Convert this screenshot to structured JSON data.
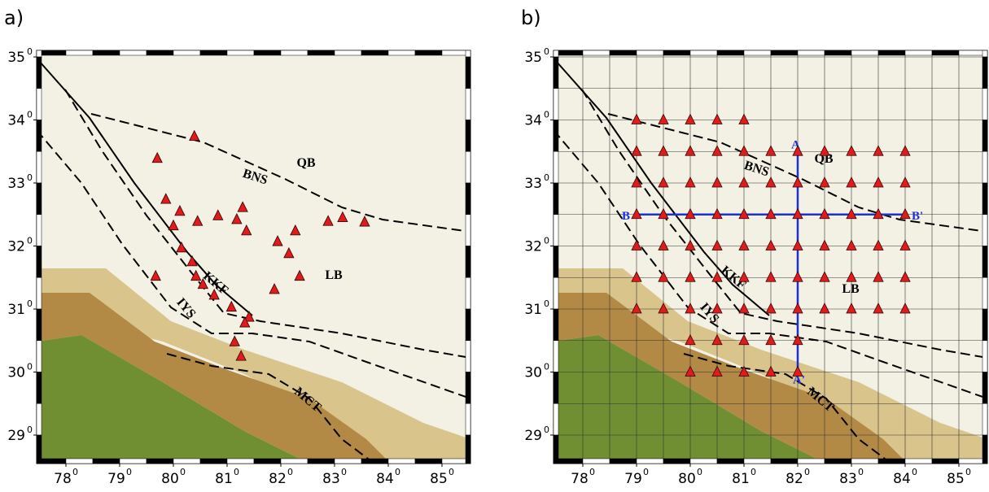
{
  "degree_mark": "0",
  "lon_ticks": [
    78,
    79,
    80,
    81,
    82,
    83,
    84,
    85
  ],
  "lat_ticks": [
    29,
    30,
    31,
    32,
    33,
    34,
    35
  ],
  "panels": [
    {
      "label": "a)",
      "region_labels": [
        "QB",
        "BNS",
        "LB",
        "KKF",
        "IYS",
        "MCT"
      ],
      "stations": [
        [
          80.39,
          33.74
        ],
        [
          79.7,
          33.39
        ],
        [
          79.86,
          32.74
        ],
        [
          80.12,
          32.55
        ],
        [
          80.0,
          32.32
        ],
        [
          80.45,
          32.39
        ],
        [
          80.83,
          32.48
        ],
        [
          81.29,
          32.61
        ],
        [
          81.18,
          32.42
        ],
        [
          81.36,
          32.24
        ],
        [
          82.27,
          32.24
        ],
        [
          81.94,
          32.07
        ],
        [
          82.15,
          31.88
        ],
        [
          82.35,
          31.52
        ],
        [
          81.88,
          31.31
        ],
        [
          80.15,
          31.97
        ],
        [
          80.35,
          31.75
        ],
        [
          80.42,
          31.52
        ],
        [
          80.55,
          31.39
        ],
        [
          80.76,
          31.22
        ],
        [
          79.67,
          31.52
        ],
        [
          81.08,
          31.03
        ],
        [
          81.41,
          30.87
        ],
        [
          81.33,
          30.78
        ],
        [
          81.14,
          30.48
        ],
        [
          81.26,
          30.25
        ],
        [
          82.88,
          32.39
        ],
        [
          83.15,
          32.45
        ],
        [
          83.56,
          32.38
        ]
      ]
    },
    {
      "label": "b)",
      "region_labels": [
        "QB",
        "BNS",
        "LB",
        "KKF",
        "IYS",
        "MCT"
      ],
      "stations": [
        [
          79,
          34
        ],
        [
          79.5,
          34
        ],
        [
          80,
          34
        ],
        [
          80.5,
          34
        ],
        [
          81,
          34
        ],
        [
          79,
          33.5
        ],
        [
          79.5,
          33.5
        ],
        [
          80,
          33.5
        ],
        [
          80.5,
          33.5
        ],
        [
          81,
          33.5
        ],
        [
          81.5,
          33.5
        ],
        [
          82,
          33.5
        ],
        [
          82.5,
          33.5
        ],
        [
          83,
          33.5
        ],
        [
          83.5,
          33.5
        ],
        [
          84,
          33.5
        ],
        [
          79,
          33
        ],
        [
          79.5,
          33
        ],
        [
          80,
          33
        ],
        [
          80.5,
          33
        ],
        [
          81,
          33
        ],
        [
          81.5,
          33
        ],
        [
          82,
          33
        ],
        [
          82.5,
          33
        ],
        [
          83,
          33
        ],
        [
          83.5,
          33
        ],
        [
          84,
          33
        ],
        [
          79,
          32.5
        ],
        [
          79.5,
          32.5
        ],
        [
          80,
          32.5
        ],
        [
          80.5,
          32.5
        ],
        [
          81,
          32.5
        ],
        [
          81.5,
          32.5
        ],
        [
          82,
          32.5
        ],
        [
          82.5,
          32.5
        ],
        [
          83,
          32.5
        ],
        [
          83.5,
          32.5
        ],
        [
          84,
          32.5
        ],
        [
          79,
          32
        ],
        [
          79.5,
          32
        ],
        [
          80,
          32
        ],
        [
          80.5,
          32
        ],
        [
          81,
          32
        ],
        [
          81.5,
          32
        ],
        [
          82,
          32
        ],
        [
          82.5,
          32
        ],
        [
          83,
          32
        ],
        [
          83.5,
          32
        ],
        [
          84,
          32
        ],
        [
          79,
          31.5
        ],
        [
          79.5,
          31.5
        ],
        [
          80,
          31.5
        ],
        [
          80.5,
          31.5
        ],
        [
          81,
          31.5
        ],
        [
          81.5,
          31.5
        ],
        [
          82,
          31.5
        ],
        [
          82.5,
          31.5
        ],
        [
          83,
          31.5
        ],
        [
          83.5,
          31.5
        ],
        [
          84,
          31.5
        ],
        [
          79,
          31
        ],
        [
          79.5,
          31
        ],
        [
          80,
          31
        ],
        [
          80.5,
          31
        ],
        [
          81,
          31
        ],
        [
          81.5,
          31
        ],
        [
          82,
          31
        ],
        [
          82.5,
          31
        ],
        [
          83,
          31
        ],
        [
          83.5,
          31
        ],
        [
          84,
          31
        ],
        [
          80,
          30.5
        ],
        [
          80.5,
          30.5
        ],
        [
          81,
          30.5
        ],
        [
          81.5,
          30.5
        ],
        [
          82,
          30.5
        ],
        [
          80,
          30
        ],
        [
          80.5,
          30
        ],
        [
          81,
          30
        ],
        [
          81.5,
          30
        ],
        [
          82,
          30
        ]
      ],
      "profiles": [
        {
          "start": "A",
          "end": "A'",
          "from": [
            82,
            33.5
          ],
          "to": [
            82,
            30
          ]
        },
        {
          "start": "B",
          "end": "B'",
          "from": [
            79,
            32.5
          ],
          "to": [
            84,
            32.5
          ]
        }
      ]
    }
  ]
}
